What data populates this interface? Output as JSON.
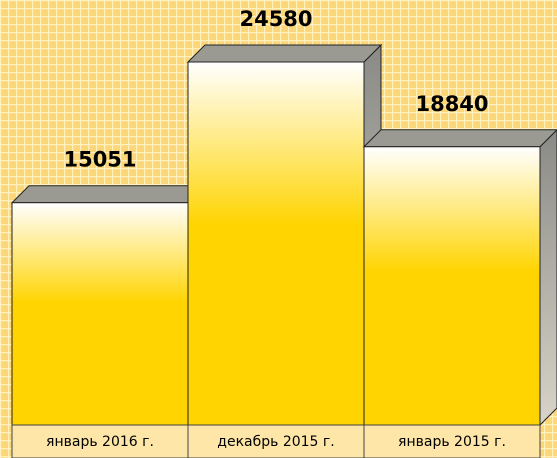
{
  "chart_data": {
    "type": "bar3d",
    "categories": [
      "январь 2016 г.",
      "декабрь 2015 г.",
      "январь 2015 г."
    ],
    "values": [
      15051,
      24580,
      18840
    ],
    "color": "#ffd400"
  }
}
